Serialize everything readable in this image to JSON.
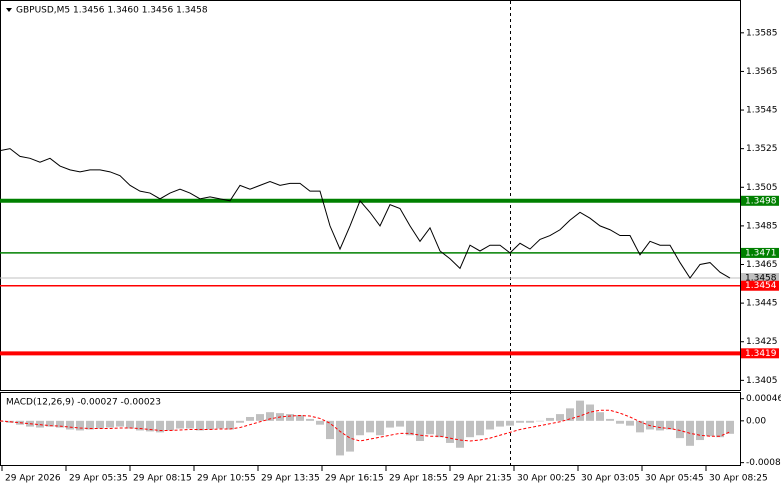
{
  "chart_data": [
    {
      "type": "line",
      "title": "GBPUSD,M5  1.3456 1.3460 1.3456 1.3458",
      "series": [
        {
          "name": "GBPUSD",
          "color": "#000000",
          "values": [
            1.3524,
            1.3525,
            1.3521,
            1.352,
            1.3518,
            1.352,
            1.3516,
            1.3514,
            1.3513,
            1.3514,
            1.3514,
            1.3513,
            1.3511,
            1.3506,
            1.3503,
            1.3502,
            1.3499,
            1.3502,
            1.3504,
            1.3502,
            1.3499,
            1.35,
            1.3499,
            1.3498,
            1.3506,
            1.3504,
            1.3506,
            1.3508,
            1.3506,
            1.3507,
            1.3507,
            1.3503,
            1.3503,
            1.3485,
            1.3473,
            1.3485,
            1.3498,
            1.3492,
            1.3485,
            1.3496,
            1.3494,
            1.3485,
            1.3477,
            1.3484,
            1.3472,
            1.3468,
            1.3463,
            1.3475,
            1.3472,
            1.3475,
            1.3475,
            1.3471,
            1.3476,
            1.3473,
            1.3478,
            1.348,
            1.3483,
            1.3488,
            1.3492,
            1.3489,
            1.3485,
            1.3483,
            1.348,
            1.348,
            1.347,
            1.3477,
            1.3475,
            1.3475,
            1.3466,
            1.3458,
            1.3465,
            1.3466,
            1.3461,
            1.3458
          ]
        }
      ],
      "last_price": 1.3458,
      "levels": [
        {
          "value": 1.3498,
          "color": "#008000",
          "thick": true
        },
        {
          "value": 1.3471,
          "color": "#008000",
          "thick": false
        },
        {
          "value": 1.3454,
          "color": "#ff0000",
          "thick": false
        },
        {
          "value": 1.3419,
          "color": "#ff0000",
          "thick": true
        }
      ],
      "ylim": [
        1.34,
        1.3602
      ],
      "yticks": [
        1.3585,
        1.3565,
        1.3545,
        1.3525,
        1.3505,
        1.3485,
        1.3465,
        1.3445,
        1.3425,
        1.3405
      ],
      "xlim": [
        0,
        74
      ],
      "xticks": [
        {
          "value": 0.2,
          "label": "29 Apr 2026"
        },
        {
          "value": 6.6,
          "label": "29 Apr 05:35"
        },
        {
          "value": 13,
          "label": "29 Apr 08:15"
        },
        {
          "value": 19.4,
          "label": "29 Apr 10:55"
        },
        {
          "value": 25.8,
          "label": "29 Apr 13:35"
        },
        {
          "value": 32.2,
          "label": "29 Apr 16:15"
        },
        {
          "value": 38.6,
          "label": "29 Apr 18:55"
        },
        {
          "value": 45,
          "label": "29 Apr 21:35"
        },
        {
          "value": 51.4,
          "label": "30 Apr 00:25"
        },
        {
          "value": 57.8,
          "label": "30 Apr 03:05"
        },
        {
          "value": 64.2,
          "label": "30 Apr 05:45"
        },
        {
          "value": 70.6,
          "label": "30 Apr 08:25"
        }
      ]
    },
    {
      "type": "macd",
      "title": "MACD(12,26,9) -0.00027 -0.00023",
      "series": [
        {
          "name": "MACD",
          "color": "#c0c0c0",
          "values": [
            -2e-05,
            -4e-05,
            -8e-05,
            -0.00012,
            -0.00014,
            -0.00012,
            -0.00014,
            -0.00018,
            -0.0002,
            -0.00018,
            -0.00016,
            -0.00014,
            -0.00012,
            -0.00016,
            -0.0002,
            -0.00022,
            -0.00024,
            -0.0002,
            -0.00016,
            -0.00016,
            -0.0002,
            -0.00018,
            -0.00016,
            -0.00018,
            -4e-05,
            8e-05,
            0.00014,
            0.00018,
            0.00016,
            0.00014,
            0.00012,
            4e-05,
            -8e-05,
            -0.00038,
            -0.00072,
            -0.00064,
            -0.0003,
            -0.00024,
            -0.0003,
            -0.00014,
            -0.00012,
            -0.0003,
            -0.00042,
            -0.00028,
            -0.00034,
            -0.00046,
            -0.00056,
            -0.00034,
            -0.0003,
            -0.00018,
            -0.00012,
            -0.0001,
            -4e-05,
            -4e-05,
            0,
            6e-05,
            0.00014,
            0.00026,
            0.00042,
            0.00034,
            0.00018,
            4e-05,
            -6e-05,
            -0.0001,
            -0.00024,
            -0.00018,
            -0.0002,
            -0.00018,
            -0.00036,
            -0.00052,
            -0.0004,
            -0.00032,
            -0.00034,
            -0.00027
          ]
        },
        {
          "name": "Signal",
          "color": "#ff0000",
          "values": [
            0,
            -2e-05,
            -4e-05,
            -6e-05,
            -8e-05,
            -0.0001,
            -0.00011,
            -0.00013,
            -0.00015,
            -0.00016,
            -0.00016,
            -0.00016,
            -0.00015,
            -0.00015,
            -0.00016,
            -0.00018,
            -0.0002,
            -0.0002,
            -0.00019,
            -0.00018,
            -0.00018,
            -0.00018,
            -0.00017,
            -0.00017,
            -0.00014,
            -8e-05,
            -2e-05,
            4e-05,
            8e-05,
            0.0001,
            0.00011,
            0.0001,
            5e-05,
            -5e-05,
            -0.00022,
            -0.00036,
            -0.00042,
            -0.00038,
            -0.00034,
            -0.0003,
            -0.00026,
            -0.00026,
            -0.0003,
            -0.00032,
            -0.00032,
            -0.00036,
            -0.0004,
            -0.00042,
            -0.0004,
            -0.00036,
            -0.0003,
            -0.00024,
            -0.00018,
            -0.00014,
            -0.0001,
            -6e-05,
            -2e-05,
            4e-05,
            0.0001,
            0.00018,
            0.00022,
            0.00022,
            0.00016,
            8e-05,
            -2e-05,
            -0.0001,
            -0.00014,
            -0.00016,
            -0.0002,
            -0.00026,
            -0.0003,
            -0.00032,
            -0.00032,
            -0.00023
          ]
        }
      ],
      "ylim": [
        -0.00094,
        0.0006
      ],
      "yticks": [
        0.00046,
        {
          "value": 0,
          "label": "0.00"
        },
        -0.00087
      ]
    }
  ]
}
